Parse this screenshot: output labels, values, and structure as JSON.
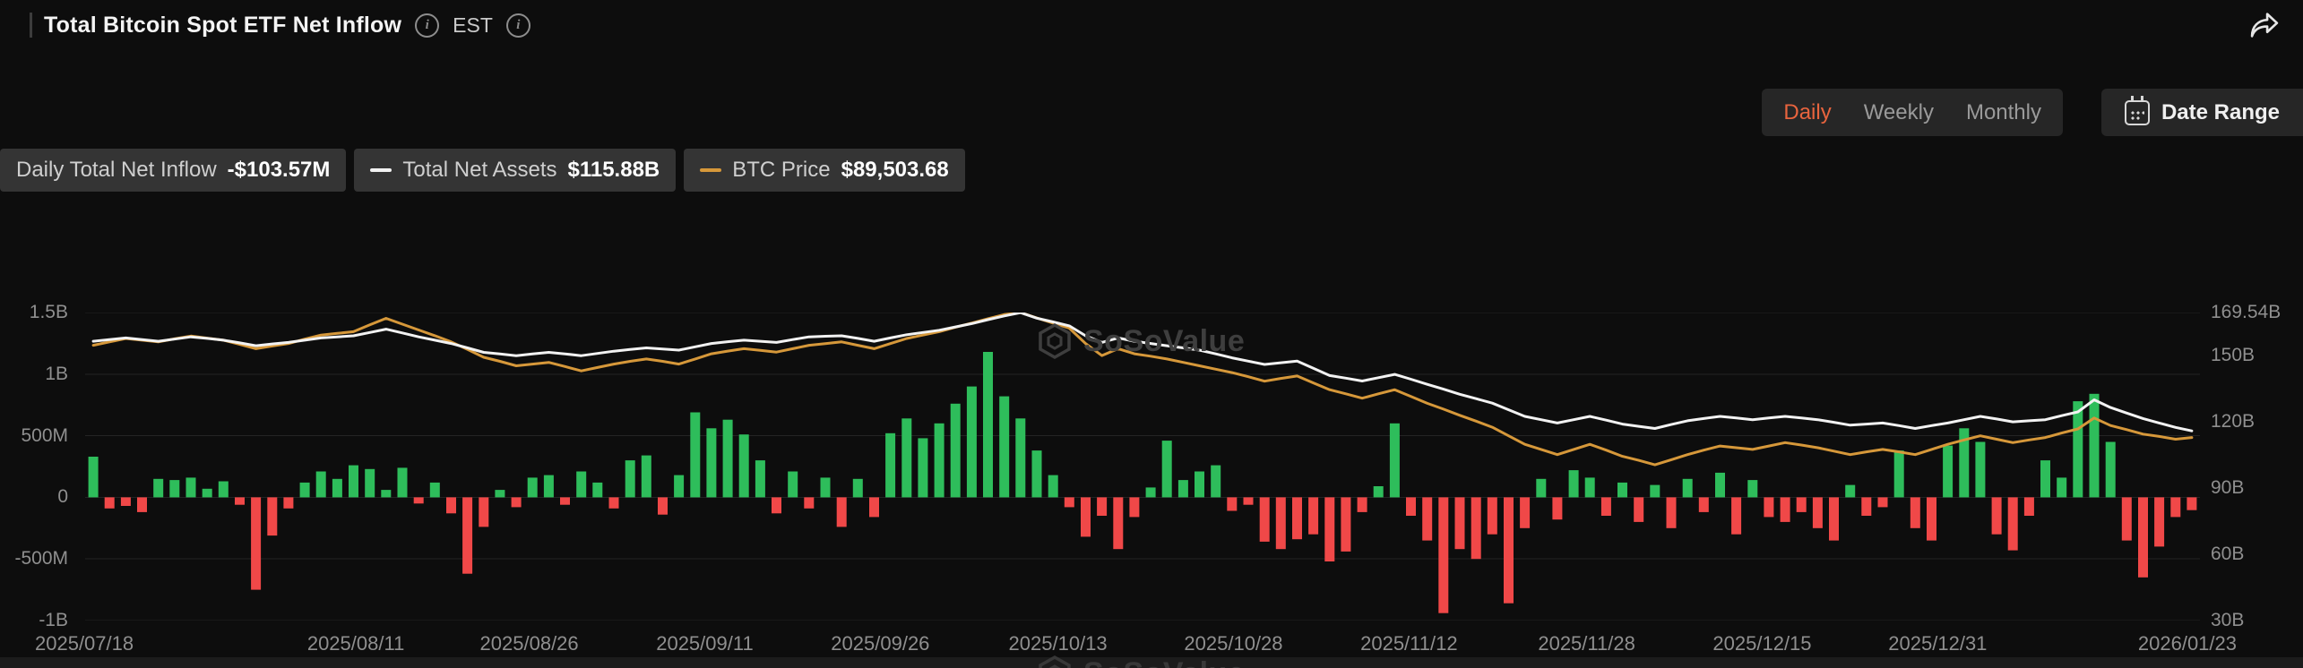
{
  "header": {
    "title": "Total Bitcoin Spot ETF Net Inflow",
    "timezone_label": "EST"
  },
  "controls": {
    "tabs": [
      {
        "label": "Daily",
        "active": true
      },
      {
        "label": "Weekly",
        "active": false
      },
      {
        "label": "Monthly",
        "active": false
      }
    ],
    "active_tab_color": "#e8643e",
    "date_range_label": "Date Range"
  },
  "legend": [
    {
      "label": "Daily Total Net Inflow",
      "value": "-$103.57M",
      "marker": null
    },
    {
      "label": "Total Net Assets",
      "value": "$115.88B",
      "marker": "#f2f2f2"
    },
    {
      "label": "BTC Price",
      "value": "$89,503.68",
      "marker": "#d6983a"
    }
  ],
  "watermark": "SoSoValue",
  "chart_data": {
    "type": "bar+line",
    "title": "Total Bitcoin Spot ETF Net Inflow",
    "grid": "horizontal only",
    "gridline_color": "#242424",
    "legend_position": "top-left pills",
    "x_ticks": [
      "2025/07/18",
      "2025/08/11",
      "2025/08/26",
      "2025/09/11",
      "2025/09/26",
      "2025/10/13",
      "2025/10/28",
      "2025/11/12",
      "2025/11/28",
      "2025/12/15",
      "2025/12/31",
      "2026/01/23"
    ],
    "x_ticks_pos": [
      0,
      0.128,
      0.21,
      0.293,
      0.376,
      0.46,
      0.543,
      0.626,
      0.71,
      0.793,
      0.876,
      1.0
    ],
    "left_axis": {
      "unit": "USD millions",
      "min": -1000,
      "max": 1500,
      "ticks": [
        "1.5B",
        "1B",
        "500M",
        "0",
        "-500M",
        "-1B"
      ],
      "values": [
        1500,
        1000,
        500,
        0,
        -500,
        -1000
      ]
    },
    "right_axis": {
      "unit": "USD billions",
      "min": 30,
      "max": 169.54,
      "ticks": [
        "169.54B",
        "150B",
        "120B",
        "90B",
        "60B",
        "30B"
      ],
      "values": [
        169.54,
        150,
        120,
        90,
        60,
        30
      ]
    },
    "bars": {
      "name": "Daily Total Net Inflow",
      "unit": "USD millions",
      "color_positive": "#2ebd5b",
      "color_negative": "#f04848",
      "latest_value_label": "-$103.57M",
      "values": [
        330,
        -90,
        -70,
        -120,
        150,
        140,
        160,
        70,
        130,
        -60,
        -750,
        -310,
        -90,
        120,
        210,
        150,
        260,
        230,
        60,
        240,
        -50,
        120,
        -130,
        -620,
        -240,
        60,
        -80,
        160,
        180,
        -60,
        210,
        120,
        -90,
        300,
        340,
        -140,
        180,
        690,
        560,
        630,
        510,
        300,
        -130,
        210,
        -90,
        160,
        -240,
        150,
        -160,
        520,
        640,
        480,
        600,
        760,
        900,
        1180,
        820,
        640,
        380,
        180,
        -80,
        -320,
        -150,
        -420,
        -160,
        80,
        460,
        140,
        210,
        260,
        -110,
        -60,
        -360,
        -420,
        -340,
        -300,
        -520,
        -440,
        -120,
        90,
        600,
        -150,
        -350,
        -940,
        -420,
        -500,
        -300,
        -860,
        -250,
        150,
        -180,
        220,
        160,
        -150,
        120,
        -200,
        100,
        -250,
        150,
        -120,
        200,
        -300,
        140,
        -160,
        -200,
        -120,
        -250,
        -350,
        100,
        -150,
        -80,
        380,
        -250,
        -350,
        420,
        560,
        450,
        -300,
        -430,
        -150,
        300,
        160,
        780,
        840,
        450,
        -350,
        -650,
        -400,
        -160,
        -103.57
      ]
    },
    "lines": [
      {
        "name": "Total Net Assets",
        "unit": "USD billions",
        "color": "#f2f2f2",
        "axis_min": 30,
        "axis_max": 169.54,
        "latest_value_label": "$115.88B",
        "values": [
          156.5,
          157.3,
          158,
          157.3,
          156.5,
          157.5,
          158.5,
          157.8,
          157,
          155.8,
          154.5,
          155.3,
          156,
          157,
          158,
          158.5,
          159,
          160.5,
          162,
          160.3,
          158.5,
          157,
          155.5,
          153.5,
          151.5,
          150.8,
          150,
          150.8,
          151.5,
          150.8,
          150,
          151,
          152,
          152.8,
          153.5,
          153,
          152.5,
          154,
          155.5,
          156.3,
          157,
          156.5,
          156,
          157.3,
          158.5,
          158.8,
          159,
          157.8,
          156.5,
          158,
          159.5,
          160.5,
          161.5,
          163,
          164.5,
          166.3,
          168,
          169.5,
          167,
          165.3,
          163.5,
          159,
          156,
          158,
          156.5,
          155.5,
          154.5,
          153.5,
          152.5,
          150.8,
          149,
          147.5,
          146,
          146.8,
          147.5,
          144.3,
          141,
          139.8,
          138.5,
          140,
          141.5,
          139.3,
          137,
          134.8,
          132.5,
          130.5,
          128.5,
          125.5,
          122.5,
          121,
          119.5,
          121,
          122.5,
          120.8,
          119,
          118,
          117,
          118.8,
          120.5,
          121.5,
          122.5,
          121.8,
          121,
          121.8,
          122.5,
          121.8,
          121,
          119.8,
          118.5,
          119,
          119.5,
          118.3,
          117,
          118.3,
          119.5,
          121,
          122.5,
          121.3,
          120,
          120.5,
          121,
          122.8,
          124.5,
          130,
          126.5,
          124,
          121.5,
          119.5,
          117.5,
          115.9
        ]
      },
      {
        "name": "BTC Price",
        "unit": "USD thousands",
        "color": "#d6983a",
        "axis_min": 35.9,
        "axis_max": 126.1,
        "latest_value_label": "$89,503.68",
        "values": [
          116.5,
          117.5,
          118.5,
          118,
          117.5,
          118.4,
          119.2,
          118.6,
          118,
          116.8,
          115.5,
          116.3,
          117,
          118.3,
          119.5,
          120,
          120.5,
          122.5,
          124.4,
          122.7,
          121,
          119.3,
          117.5,
          115.3,
          113,
          111.8,
          110.5,
          111,
          111.5,
          110.3,
          109,
          110,
          111,
          111.8,
          112.5,
          111.8,
          111,
          112.5,
          114,
          114.8,
          115.5,
          115,
          114.5,
          115.5,
          116.5,
          117,
          117.5,
          116.5,
          115.5,
          117,
          118.5,
          119.5,
          120.5,
          121.8,
          123,
          124.3,
          125.5,
          126.1,
          124.5,
          123,
          121.5,
          117,
          113.5,
          115.5,
          114,
          113.3,
          112.5,
          111.5,
          110.5,
          109.5,
          108.5,
          107.3,
          106,
          106.8,
          107.5,
          105.5,
          103.5,
          102.3,
          101,
          102.3,
          103.5,
          101.5,
          99.5,
          97.8,
          96,
          94.3,
          92.5,
          90,
          87.5,
          86,
          84.5,
          86,
          87.5,
          85.8,
          84,
          82.8,
          81.5,
          83,
          84.5,
          85.8,
          87,
          86.5,
          86,
          87,
          88,
          87.3,
          86.5,
          85.5,
          84.5,
          85.3,
          86,
          85.3,
          84.5,
          86,
          87.5,
          88.8,
          90,
          89,
          88,
          88.8,
          89.5,
          90.8,
          92,
          95.2,
          93,
          91.8,
          90.5,
          89.8,
          89,
          89.5
        ]
      }
    ]
  }
}
